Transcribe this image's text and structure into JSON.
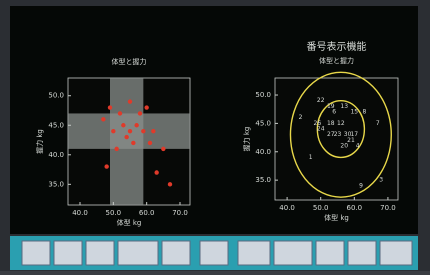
{
  "chart_data": [
    {
      "type": "scatter",
      "title": "体型と握力",
      "xlabel": "体型 kg",
      "ylabel": "握力 kg",
      "xlim": [
        36.4,
        73
      ],
      "ylim": [
        31.5,
        53
      ],
      "xticks": [
        {
          "value": 40,
          "label": "40.0"
        },
        {
          "value": 50,
          "label": "50.0"
        },
        {
          "value": 60,
          "label": "60.0"
        },
        {
          "value": 70,
          "label": "70.0"
        }
      ],
      "yticks": [
        {
          "value": 35,
          "label": "35.0"
        },
        {
          "value": 40,
          "label": "40.0"
        },
        {
          "value": 45,
          "label": "45.0"
        },
        {
          "value": 50,
          "label": "50.0"
        }
      ],
      "x_band": [
        49,
        59
      ],
      "y_band": [
        41,
        47
      ],
      "band_color": "#8a8f8c",
      "color": "#e03a2a",
      "x": [
        49,
        52,
        55,
        58,
        60,
        53,
        57,
        59,
        62,
        50,
        54,
        56,
        61,
        47,
        51,
        48,
        63,
        67,
        55,
        65
      ],
      "y": [
        48,
        47,
        49,
        47,
        48,
        45,
        45,
        44,
        44,
        44,
        43,
        42,
        42,
        46,
        41,
        38,
        37,
        35,
        44,
        41
      ]
    },
    {
      "type": "labeled-scatter",
      "title": "番号表示機能",
      "subtitle": "体型と握力",
      "xlabel": "体型 kg",
      "ylabel": "握力 kg",
      "xlim": [
        36.4,
        73
      ],
      "ylim": [
        31.5,
        53
      ],
      "xticks": [
        {
          "value": 40,
          "label": "40.0"
        },
        {
          "value": 50,
          "label": "50.0"
        },
        {
          "value": 60,
          "label": "60.0"
        },
        {
          "value": 70,
          "label": "70.0"
        }
      ],
      "yticks": [
        {
          "value": 35,
          "label": "35.0"
        },
        {
          "value": 40,
          "label": "40.0"
        },
        {
          "value": 45,
          "label": "45.0"
        },
        {
          "value": 50,
          "label": "50.0"
        }
      ],
      "ellipse_color": "#e8d84a",
      "ellipses": [
        {
          "cx": 56,
          "cy": 43,
          "rx": 15,
          "ry": 11
        },
        {
          "cx": 56,
          "cy": 44,
          "rx": 7,
          "ry": 5
        }
      ],
      "labels": [
        "22",
        "19",
        "13",
        "6",
        "15",
        "26",
        "24",
        "18",
        "12",
        "23",
        "27",
        "30",
        "17",
        "21",
        "20",
        "4",
        "7",
        "1",
        "9",
        "3",
        "2",
        "8"
      ],
      "x": [
        50,
        53,
        57,
        54,
        60,
        49,
        50,
        53,
        56,
        55,
        53,
        58,
        60,
        59,
        57,
        61,
        67,
        47,
        62,
        68,
        44,
        63
      ],
      "y": [
        49,
        48,
        48,
        47,
        47,
        45,
        44,
        45,
        45,
        43,
        43,
        43,
        43,
        42,
        41,
        41,
        45,
        39,
        34,
        35,
        46,
        47
      ]
    }
  ]
}
